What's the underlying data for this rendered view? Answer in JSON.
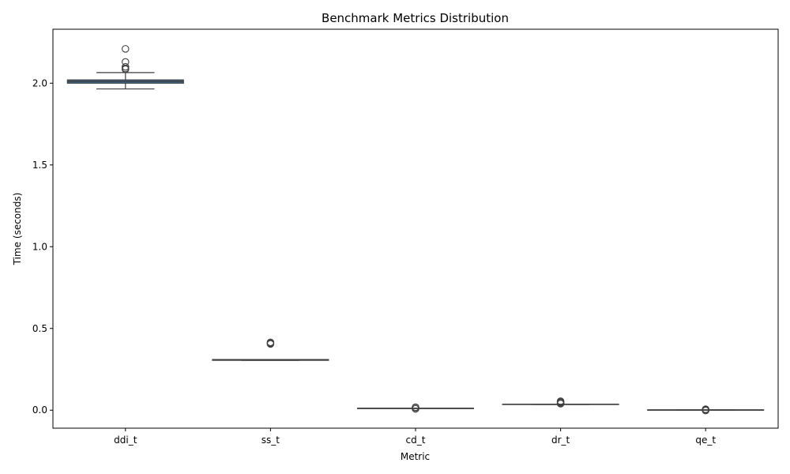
{
  "chart_data": {
    "type": "box",
    "title": "Benchmark Metrics Distribution",
    "xlabel": "Metric",
    "ylabel": "Time (seconds)",
    "ylim": [
      -0.11,
      2.33
    ],
    "yticks": [
      "0.0",
      "0.5",
      "1.0",
      "1.5",
      "2.0"
    ],
    "grid": false,
    "box_color": "#3a6f9a",
    "line_color": "#3f3f3f",
    "categories": [
      "ddi_t",
      "ss_t",
      "cd_t",
      "dr_t",
      "qe_t"
    ],
    "boxes": [
      {
        "category": "ddi_t",
        "whisker_low": 1.965,
        "q1": 2.0,
        "median": 2.01,
        "q3": 2.02,
        "whisker_high": 2.065,
        "outliers": [
          2.21,
          2.13,
          2.1,
          2.09,
          2.085
        ]
      },
      {
        "category": "ss_t",
        "whisker_low": 0.305,
        "q1": 0.305,
        "median": 0.308,
        "q3": 0.31,
        "whisker_high": 0.31,
        "outliers": [
          0.405,
          0.41,
          0.415
        ]
      },
      {
        "category": "cd_t",
        "whisker_low": 0.011,
        "q1": 0.011,
        "median": 0.012,
        "q3": 0.012,
        "whisker_high": 0.012,
        "outliers": [
          0.008,
          0.015,
          0.018
        ]
      },
      {
        "category": "dr_t",
        "whisker_low": 0.035,
        "q1": 0.035,
        "median": 0.036,
        "q3": 0.037,
        "whisker_high": 0.037,
        "outliers": [
          0.04,
          0.045,
          0.05,
          0.055
        ]
      },
      {
        "category": "qe_t",
        "whisker_low": 0.001,
        "q1": 0.001,
        "median": 0.002,
        "q3": 0.002,
        "whisker_high": 0.002,
        "outliers": [
          -0.002,
          0.003,
          0.006
        ]
      }
    ]
  }
}
